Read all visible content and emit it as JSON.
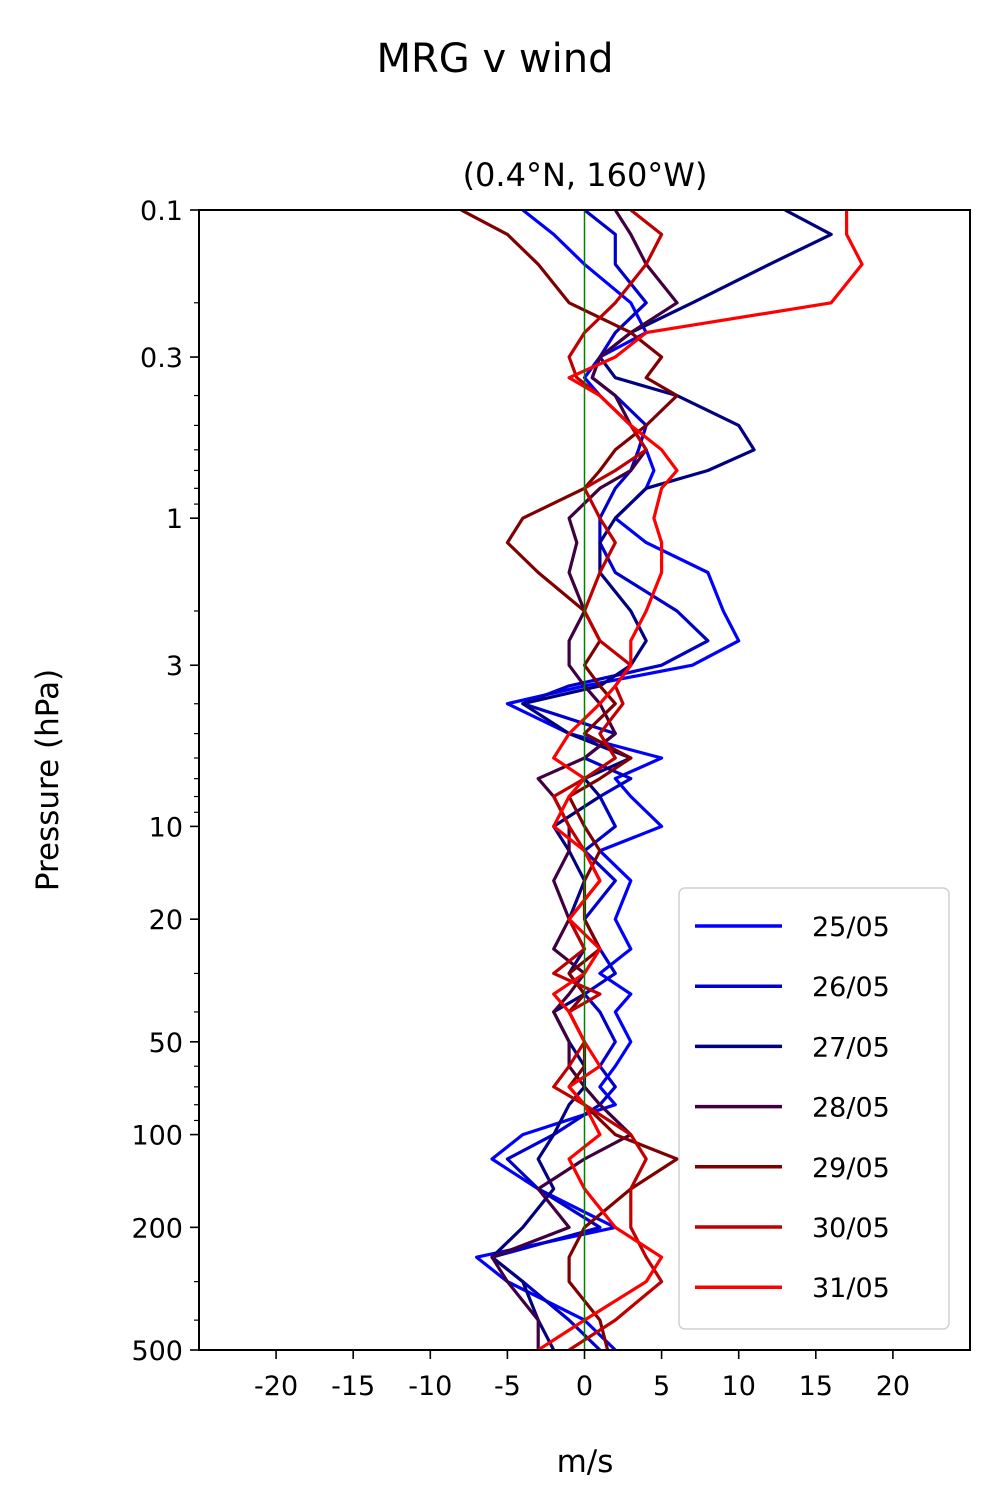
{
  "figure": {
    "suptitle": "MRG v wind",
    "subtitle": "(0.4°N, 160°W)"
  },
  "chart_data": {
    "type": "line",
    "title": "MRG v wind",
    "subtitle": "(0.4°N, 160°W)",
    "xlabel": "m/s",
    "ylabel": "Pressure (hPa)",
    "xlim": [
      -25,
      25
    ],
    "ylim": [
      500,
      0.1
    ],
    "yscale": "log",
    "grid": false,
    "legend_position": "lower right",
    "x_ticks": [
      {
        "value": -20,
        "label": "-20"
      },
      {
        "value": -15,
        "label": "-15"
      },
      {
        "value": -10,
        "label": "-10"
      },
      {
        "value": -5,
        "label": "-5"
      },
      {
        "value": 0,
        "label": "0"
      },
      {
        "value": 5,
        "label": "5"
      },
      {
        "value": 10,
        "label": "10"
      },
      {
        "value": 15,
        "label": "15"
      },
      {
        "value": 20,
        "label": "20"
      }
    ],
    "y_ticks": [
      {
        "value": 0.1,
        "label": "0.1"
      },
      {
        "value": 0.3,
        "label": "0.3"
      },
      {
        "value": 1,
        "label": "1"
      },
      {
        "value": 3,
        "label": "3"
      },
      {
        "value": 10,
        "label": "10"
      },
      {
        "value": 20,
        "label": "20"
      },
      {
        "value": 50,
        "label": "50"
      },
      {
        "value": 100,
        "label": "100"
      },
      {
        "value": 200,
        "label": "200"
      },
      {
        "value": 500,
        "label": "500"
      }
    ],
    "zero_line_color": "#008000",
    "pressure": [
      0.1,
      0.12,
      0.15,
      0.2,
      0.25,
      0.3,
      0.35,
      0.4,
      0.5,
      0.6,
      0.7,
      0.8,
      1.0,
      1.2,
      1.5,
      2.0,
      2.5,
      3.0,
      3.5,
      4.0,
      5.0,
      6.0,
      7.0,
      8.0,
      10.0,
      12.0,
      15.0,
      20.0,
      25.0,
      30.0,
      35.0,
      40.0,
      50.0,
      60.0,
      70.0,
      80.0,
      100.0,
      120.0,
      150.0,
      200.0,
      250.0,
      300.0,
      400.0,
      500.0
    ],
    "series": [
      {
        "name": "25/05",
        "color": "#0000ff",
        "x": [
          -4,
          -2,
          0,
          3,
          4,
          1,
          0,
          1,
          3,
          4,
          4.5,
          4,
          2,
          4,
          8,
          9,
          10,
          7,
          0,
          -5,
          -1,
          5,
          2,
          3,
          5,
          1,
          3,
          2,
          3,
          1,
          3,
          2,
          3,
          2,
          1,
          2,
          -4,
          -6,
          -3,
          2,
          -7,
          -5,
          0,
          2
        ]
      },
      {
        "name": "26/05",
        "color": "#0000cc",
        "x": [
          0,
          2,
          2,
          4,
          2,
          1,
          0.5,
          2,
          4,
          3.5,
          3,
          2,
          1,
          1,
          2,
          6,
          8,
          5,
          -1,
          -4,
          2,
          0,
          3,
          1,
          2,
          0,
          2,
          0,
          1,
          2,
          0,
          1,
          2,
          1,
          2,
          1,
          -2,
          -5,
          -3,
          1,
          -6,
          -4,
          -1,
          1
        ]
      },
      {
        "name": "27/05",
        "color": "#000080",
        "x": [
          13,
          16,
          12,
          7,
          3,
          1,
          2,
          6,
          10,
          11,
          8,
          4,
          2,
          1,
          1,
          3,
          4,
          3,
          1,
          -4,
          -1,
          3,
          0,
          1,
          -2,
          -1,
          0,
          -1,
          0,
          -1,
          0,
          -2,
          -1,
          0,
          0,
          -1,
          -2,
          -3,
          -2,
          -4,
          -6,
          -4,
          -3,
          -2
        ]
      },
      {
        "name": "28/05",
        "color": "#400040",
        "x": [
          2,
          3,
          4,
          6,
          3,
          1,
          0.5,
          2,
          3,
          4,
          3,
          1,
          -1,
          -0.5,
          -1,
          0,
          -1,
          -1,
          0,
          1,
          2,
          0,
          -3,
          -2,
          -1,
          -1,
          -2,
          -1,
          -2,
          0,
          -1,
          -2,
          -1,
          -1,
          0,
          1,
          3,
          0,
          -3,
          -1,
          -6,
          -5,
          -3,
          -3
        ]
      },
      {
        "name": "29/05",
        "color": "#800000",
        "x": [
          -8,
          -5,
          -3,
          -1,
          3,
          5,
          4,
          6,
          4,
          2,
          1,
          0,
          -4,
          -5,
          -3,
          0,
          1,
          0,
          1,
          2,
          0,
          3,
          1,
          -1,
          0,
          1,
          0,
          0,
          1,
          -1,
          0,
          -1,
          0,
          0,
          -1,
          0,
          2,
          6,
          3,
          0,
          -1,
          -1,
          1,
          1.5
        ]
      },
      {
        "name": "30/05",
        "color": "#c00000",
        "x": [
          3,
          5,
          4,
          2,
          0,
          -1,
          -0.5,
          1,
          3,
          4,
          2,
          0,
          1,
          2,
          1,
          0,
          1,
          3,
          2,
          2.5,
          1,
          2,
          0,
          -2,
          -1,
          0,
          1,
          -1,
          0,
          -2,
          1,
          -1,
          0,
          -1,
          -2,
          0,
          3,
          4,
          3,
          3,
          4,
          5,
          2,
          -1
        ]
      },
      {
        "name": "31/05",
        "color": "#ff0000",
        "x": [
          17,
          17,
          18,
          16,
          4,
          2,
          -1,
          1,
          3,
          5,
          6,
          5,
          4.5,
          5,
          5,
          4,
          3,
          3,
          2,
          1,
          -1,
          -2,
          0,
          -1,
          -2,
          0,
          1,
          -1,
          1,
          0,
          -2,
          -1,
          0,
          1,
          -1,
          0,
          1,
          -1,
          0,
          2,
          5,
          4,
          0,
          -3
        ]
      }
    ]
  }
}
